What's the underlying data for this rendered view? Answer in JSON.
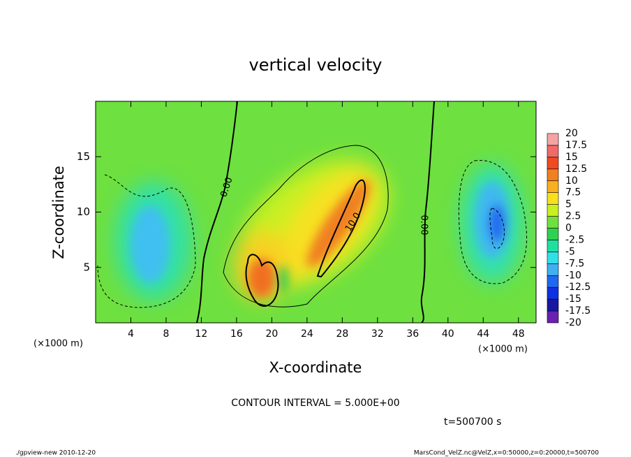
{
  "chart_data": {
    "type": "contour",
    "title": "vertical velocity",
    "x_label": "X-coordinate",
    "y_label": "Z-coordinate",
    "x_unit": "(×1000 m)",
    "xlim": [
      0,
      50
    ],
    "ylim": [
      0,
      20
    ],
    "xticks": [
      4,
      8,
      12,
      16,
      20,
      24,
      28,
      32,
      36,
      40,
      44,
      48
    ],
    "yticks": [
      5,
      10,
      15
    ],
    "colorbar": {
      "levels": [
        -20,
        -17.5,
        -15,
        -12.5,
        -10,
        -7.5,
        -5,
        -2.5,
        0,
        2.5,
        5,
        7.5,
        10,
        12.5,
        15,
        17.5,
        20
      ],
      "colors": [
        "#6a20b0",
        "#1818a0",
        "#1030e0",
        "#2068f0",
        "#40b0f0",
        "#30e0e8",
        "#20e0a0",
        "#30d050",
        "#70e040",
        "#c8f020",
        "#f8e020",
        "#f8b020",
        "#f08020",
        "#f04a20",
        "#f06a6a",
        "#f5a3a3"
      ]
    },
    "contour_labels": [
      "0.00",
      "0.00",
      "10.0"
    ],
    "annotations": [
      "CONTOUR INTERVAL = 5.000E+00",
      "t=500700 s",
      "./gpview-new  2010-12-20",
      "MarsCond_VelZ.nc@VelZ,x=0:50000,z=0:20000,t=500700"
    ]
  }
}
